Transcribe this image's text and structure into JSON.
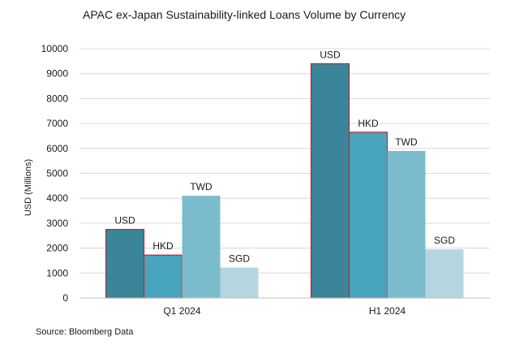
{
  "chart_data": {
    "type": "bar",
    "title": "APAC ex-Japan Sustainability-linked Loans Volume by Currency",
    "ylabel": "USD (Millions)",
    "xlabel": "",
    "categories": [
      "Q1 2024",
      "H1 2024"
    ],
    "series": [
      {
        "name": "USD",
        "values": [
          2750,
          9400
        ],
        "color": "#3a8599",
        "outlined": true
      },
      {
        "name": "HKD",
        "values": [
          1720,
          6650
        ],
        "color": "#48a5bd",
        "outlined": true
      },
      {
        "name": "TWD",
        "values": [
          4100,
          5900
        ],
        "color": "#7bbccc",
        "outlined": false
      },
      {
        "name": "SGD",
        "values": [
          1220,
          1950
        ],
        "color": "#b4d6e0",
        "outlined": false
      }
    ],
    "ylim": [
      0,
      10000
    ],
    "yticks": [
      "0",
      "1000",
      "2000",
      "3000",
      "4000",
      "5000",
      "6000",
      "7000",
      "8000",
      "9000",
      "10000"
    ],
    "grid": true,
    "source": "Source: Bloomberg Data"
  },
  "colors": {
    "grid": "#d9d9d9",
    "outline": "#c0272d",
    "axis": "#bfbfbf"
  }
}
